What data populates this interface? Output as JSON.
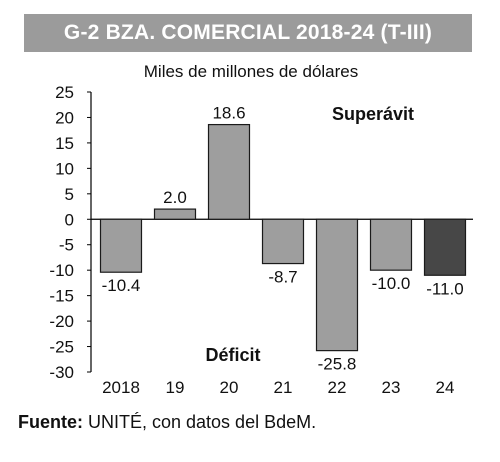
{
  "title": "G-2 BZA. COMERCIAL 2018-24 (T-III)",
  "unit_label": "Miles de millones de dólares",
  "source": {
    "label": "Fuente:",
    "text": " UNITÉ, con datos del BdeM."
  },
  "chart_data": {
    "type": "bar",
    "categories": [
      "2018",
      "19",
      "20",
      "21",
      "22",
      "23",
      "24"
    ],
    "values": [
      -10.4,
      2.0,
      18.6,
      -8.7,
      -25.8,
      -10.0,
      -11.0
    ],
    "data_labels": [
      "-10.4",
      "2.0",
      "18.6",
      "-8.7",
      "-25.8",
      "-10.0",
      "-11.0"
    ],
    "ylim": [
      -30,
      25
    ],
    "yticks": [
      25,
      20,
      15,
      10,
      5,
      0,
      -5,
      -10,
      -15,
      -20,
      -25,
      -30
    ],
    "annotations": {
      "positive": "Superávit",
      "negative": "Déficit"
    },
    "colors": {
      "bar": "#9e9e9e",
      "highlight": "#474747",
      "highlight_index": 6,
      "axis": "#000000"
    },
    "grid": false,
    "legend": "none"
  }
}
